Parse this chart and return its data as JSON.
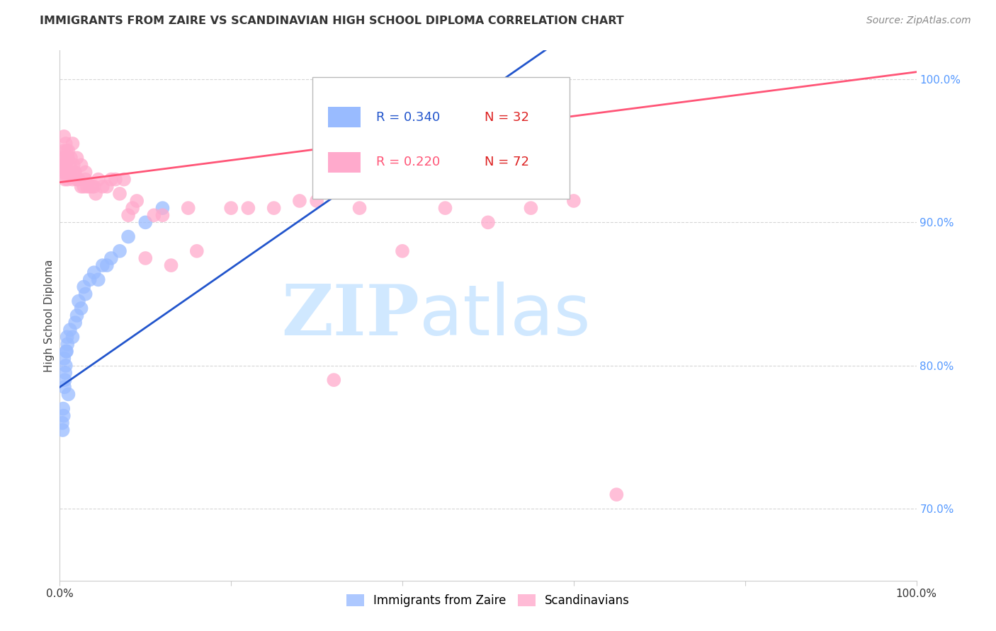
{
  "title": "IMMIGRANTS FROM ZAIRE VS SCANDINAVIAN HIGH SCHOOL DIPLOMA CORRELATION CHART",
  "source": "Source: ZipAtlas.com",
  "ylabel": "High School Diploma",
  "blue_label": "Immigrants from Zaire",
  "pink_label": "Scandinavians",
  "blue_R": 0.34,
  "blue_N": 32,
  "pink_R": 0.22,
  "pink_N": 72,
  "blue_color": "#99bbff",
  "pink_color": "#ffaacc",
  "blue_line_color": "#2255cc",
  "pink_line_color": "#ff5577",
  "watermark_zip": "ZIP",
  "watermark_atlas": "atlas",
  "watermark_color": "#d0e8ff",
  "bg_color": "#ffffff",
  "title_color": "#333333",
  "right_axis_color": "#5599ff",
  "grid_color": "#cccccc",
  "blue_scatter_x": [
    0.5,
    0.8,
    1.0,
    1.5,
    2.0,
    2.5,
    3.0,
    3.5,
    4.0,
    5.0,
    6.0,
    7.0,
    8.0,
    10.0,
    12.0,
    0.3,
    0.4,
    0.6,
    0.7,
    0.9,
    1.2,
    1.8,
    2.2,
    2.8,
    4.5,
    5.5,
    0.35,
    0.45,
    0.55,
    0.65,
    0.75,
    0.85
  ],
  "blue_scatter_y": [
    80.5,
    81.0,
    78.0,
    82.0,
    83.5,
    84.0,
    85.0,
    86.0,
    86.5,
    87.0,
    87.5,
    88.0,
    89.0,
    90.0,
    91.0,
    76.0,
    77.0,
    79.0,
    80.0,
    81.5,
    82.5,
    83.0,
    84.5,
    85.5,
    86.0,
    87.0,
    75.5,
    76.5,
    78.5,
    79.5,
    81.0,
    82.0
  ],
  "pink_scatter_x": [
    0.3,
    0.4,
    0.5,
    0.5,
    0.6,
    0.6,
    0.7,
    0.7,
    0.8,
    0.8,
    0.9,
    0.9,
    1.0,
    1.0,
    1.1,
    1.2,
    1.3,
    1.5,
    1.5,
    1.7,
    2.0,
    2.0,
    2.2,
    2.5,
    2.5,
    3.0,
    3.0,
    3.5,
    4.0,
    4.5,
    5.0,
    6.0,
    7.0,
    8.0,
    9.0,
    10.0,
    11.0,
    12.0,
    15.0,
    20.0,
    25.0,
    30.0,
    35.0,
    40.0,
    50.0,
    60.0,
    0.35,
    0.45,
    0.55,
    0.65,
    0.75,
    0.85,
    0.95,
    1.4,
    1.6,
    1.8,
    2.8,
    3.2,
    3.8,
    4.2,
    5.5,
    6.5,
    7.5,
    8.5,
    13.0,
    16.0,
    22.0,
    28.0,
    32.0,
    45.0,
    55.0,
    65.0
  ],
  "pink_scatter_y": [
    94.0,
    93.5,
    95.0,
    96.0,
    93.0,
    94.5,
    95.5,
    94.0,
    93.5,
    95.0,
    94.5,
    93.0,
    95.0,
    93.5,
    94.0,
    93.5,
    94.5,
    93.0,
    95.5,
    93.5,
    93.0,
    94.5,
    93.0,
    92.5,
    94.0,
    93.5,
    93.0,
    92.5,
    92.5,
    93.0,
    92.5,
    93.0,
    92.0,
    90.5,
    91.5,
    87.5,
    90.5,
    90.5,
    91.0,
    91.0,
    91.0,
    91.5,
    91.0,
    88.0,
    90.0,
    91.5,
    94.5,
    94.0,
    94.0,
    93.5,
    93.8,
    93.5,
    94.5,
    93.5,
    94.0,
    93.5,
    92.5,
    92.5,
    92.5,
    92.0,
    92.5,
    93.0,
    93.0,
    91.0,
    87.0,
    88.0,
    91.0,
    91.5,
    79.0,
    91.0,
    91.0,
    71.0
  ]
}
